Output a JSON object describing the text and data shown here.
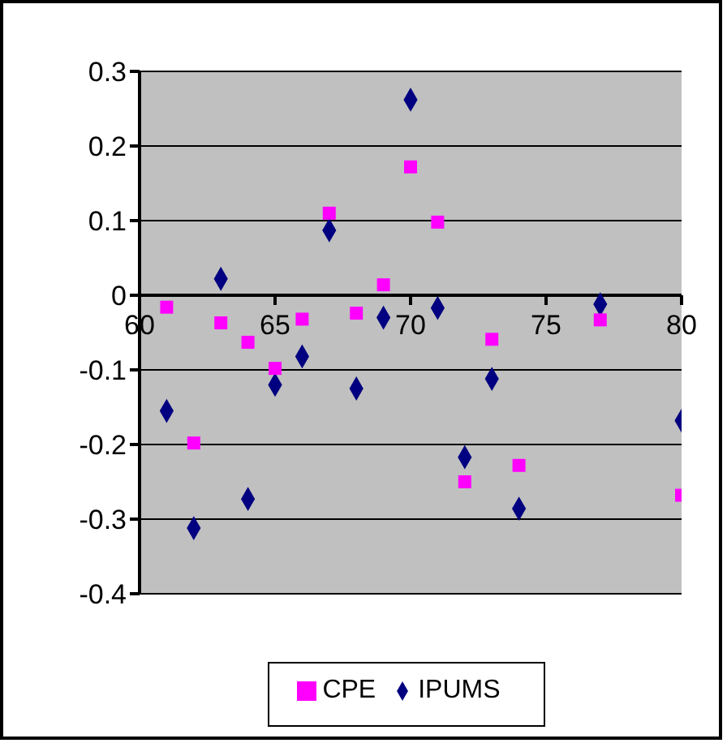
{
  "chart_data": {
    "type": "scatter",
    "x": [
      61,
      62,
      63,
      64,
      65,
      66,
      67,
      68,
      69,
      70,
      71,
      72,
      73,
      74,
      77,
      80
    ],
    "series": [
      {
        "name": "IPUMS",
        "color": "#000080",
        "marker": "diamond",
        "values": [
          -0.155,
          -0.312,
          0.022,
          -0.273,
          -0.12,
          -0.082,
          0.087,
          -0.125,
          -0.03,
          0.262,
          -0.017,
          -0.217,
          -0.112,
          -0.286,
          -0.012,
          -0.168
        ]
      },
      {
        "name": "CPE",
        "color": "#ff00ff",
        "marker": "square",
        "values": [
          -0.016,
          -0.198,
          -0.037,
          -0.063,
          -0.098,
          -0.032,
          0.11,
          -0.024,
          0.014,
          0.172,
          0.098,
          -0.25,
          -0.059,
          -0.228,
          -0.033,
          -0.268
        ]
      }
    ],
    "xlim": [
      60,
      80
    ],
    "xticks": [
      60,
      65,
      70,
      75,
      80
    ],
    "ylim": [
      -0.4,
      0.3
    ],
    "yticks": [
      -0.4,
      -0.3,
      -0.2,
      -0.1,
      0,
      0.1,
      0.2,
      0.3
    ],
    "grid": "y",
    "legend": "bottom"
  }
}
